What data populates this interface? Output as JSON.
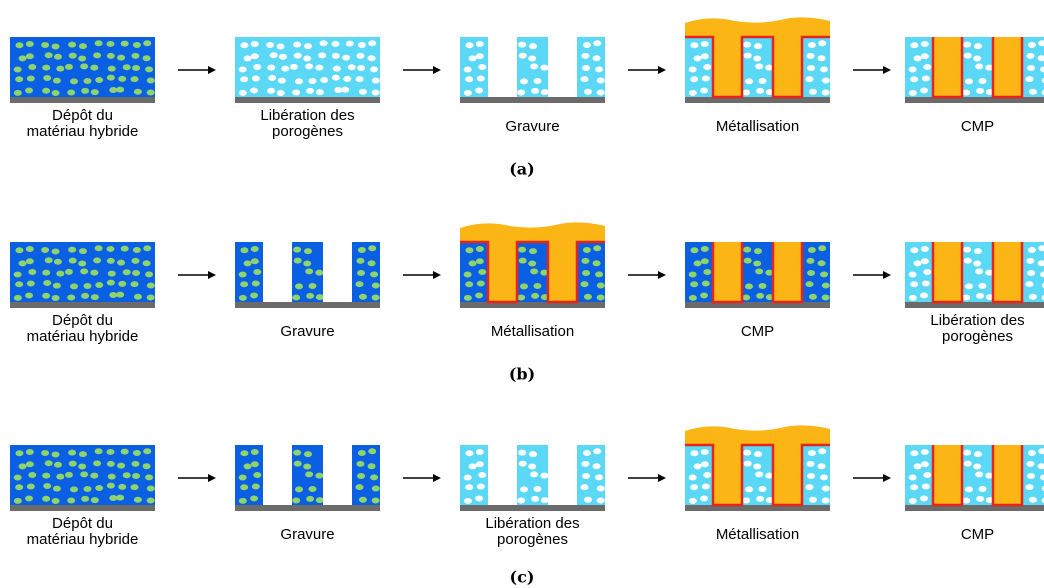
{
  "rows": [
    {
      "steps": [
        [
          "Dépôt du",
          "matériau hybride"
        ],
        [
          "Libération des",
          "porogènes"
        ],
        [
          "Gravure"
        ],
        [
          "Métallisation"
        ],
        [
          "CMP"
        ]
      ],
      "caption": "(a)"
    },
    {
      "steps": [
        [
          "Dépôt du",
          "matériau hybride"
        ],
        [
          "Gravure"
        ],
        [
          "Métallisation"
        ],
        [
          "CMP"
        ],
        [
          "Libération des",
          "porogènes"
        ]
      ],
      "caption": "(b)"
    },
    {
      "steps": [
        [
          "Dépôt du",
          "matériau hybride"
        ],
        [
          "Gravure"
        ],
        [
          "Libération des",
          "porogènes"
        ],
        [
          "Métallisation"
        ],
        [
          "CMP"
        ]
      ],
      "caption": "(c)"
    }
  ]
}
